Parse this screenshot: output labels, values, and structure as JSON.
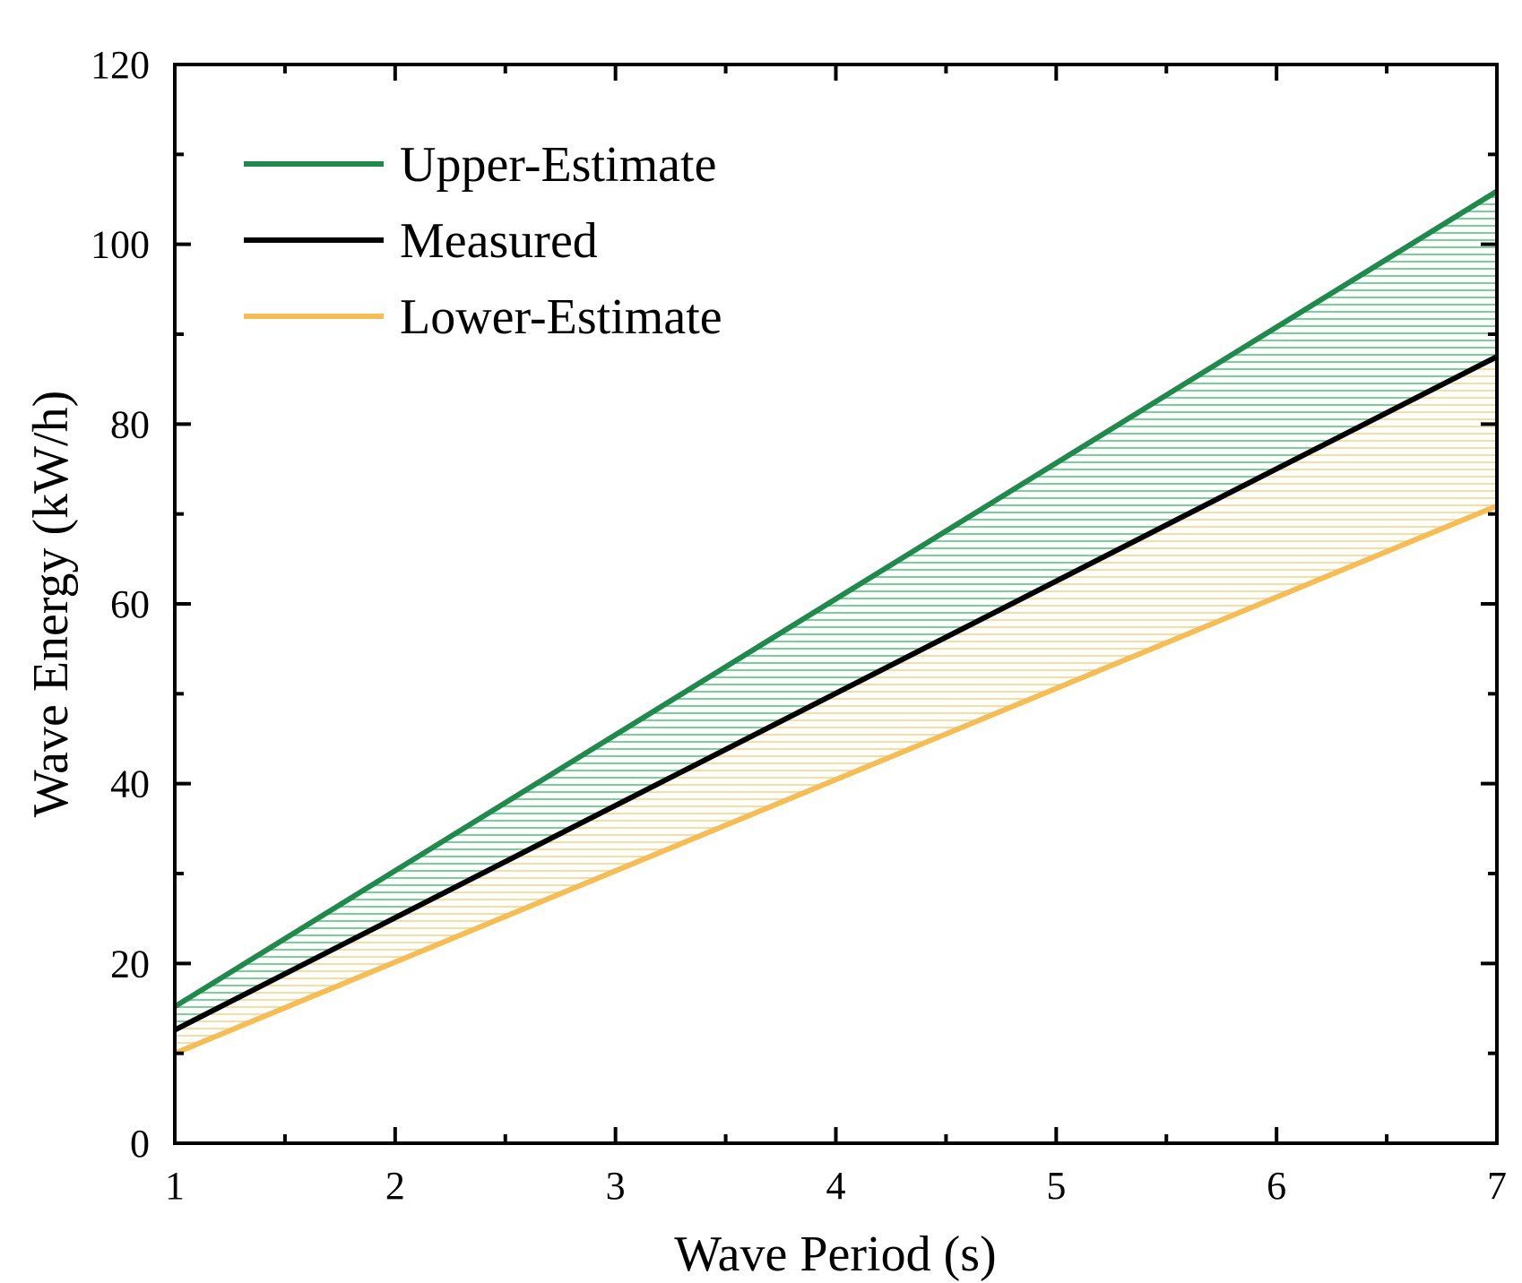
{
  "chart_data": {
    "type": "line",
    "title": "",
    "xlabel": "Wave Period (s)",
    "ylabel": "Wave Energy (kW/h)",
    "xlim": [
      1,
      7
    ],
    "ylim": [
      0,
      120
    ],
    "x_major_ticks": [
      1,
      2,
      3,
      4,
      5,
      6,
      7
    ],
    "x_minor_ticks": [
      1.5,
      2.5,
      3.5,
      4.5,
      5.5,
      6.5
    ],
    "y_major_ticks": [
      0,
      20,
      40,
      60,
      80,
      100,
      120
    ],
    "y_minor_ticks": [
      10,
      30,
      50,
      70,
      90,
      110
    ],
    "x_tick_labels": [
      "1",
      "2",
      "3",
      "4",
      "5",
      "6",
      "7"
    ],
    "y_tick_labels": [
      "0",
      "20",
      "40",
      "60",
      "80",
      "100",
      "120"
    ],
    "grid": false,
    "legend_position": "top-left",
    "series": [
      {
        "name": "Upper-Estimate",
        "color": "#1f8a4c",
        "x": [
          1,
          7
        ],
        "values": [
          15.2,
          105.9
        ]
      },
      {
        "name": "Measured",
        "color": "#000000",
        "x": [
          1,
          7
        ],
        "values": [
          12.6,
          87.5
        ]
      },
      {
        "name": "Lower-Estimate",
        "color": "#f5bd55",
        "x": [
          1,
          7
        ],
        "values": [
          10.0,
          70.9
        ]
      }
    ],
    "fill_between": [
      {
        "upper": "Upper-Estimate",
        "lower": "Measured",
        "color": "#7ccf98",
        "pattern": "horizontal-lines"
      },
      {
        "upper": "Measured",
        "lower": "Lower-Estimate",
        "color": "#f7dca0",
        "pattern": "horizontal-lines"
      }
    ]
  }
}
